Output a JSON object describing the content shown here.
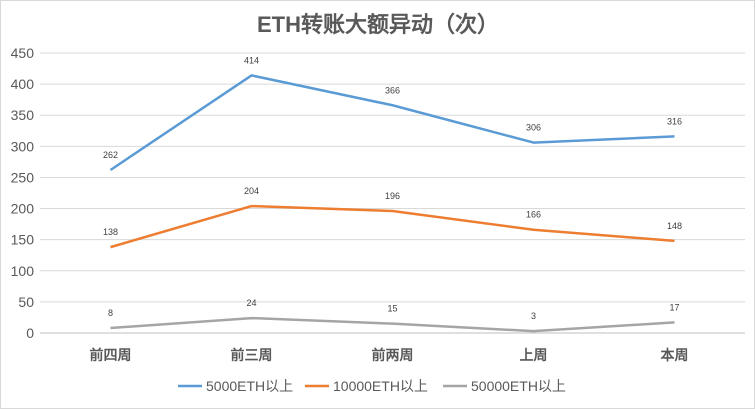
{
  "chart_data": {
    "type": "line",
    "title": "ETH转账大额异动（次）",
    "xlabel": "",
    "ylabel": "",
    "categories": [
      "前四周",
      "前三周",
      "前两周",
      "上周",
      "本周"
    ],
    "ylim": [
      0,
      450
    ],
    "yticks": [
      0,
      50,
      100,
      150,
      200,
      250,
      300,
      350,
      400,
      450
    ],
    "grid": true,
    "legend_position": "bottom",
    "series": [
      {
        "name": "5000ETH以上",
        "color": "#5B9BD5",
        "values": [
          262,
          414,
          366,
          306,
          316
        ]
      },
      {
        "name": "10000ETH以上",
        "color": "#ED7D31",
        "values": [
          138,
          204,
          196,
          166,
          148
        ]
      },
      {
        "name": "50000ETH以上",
        "color": "#A5A5A5",
        "values": [
          8,
          24,
          15,
          3,
          17
        ]
      }
    ]
  }
}
